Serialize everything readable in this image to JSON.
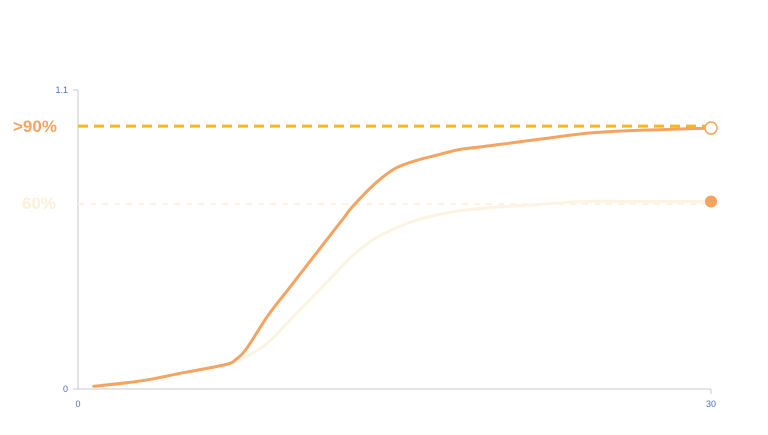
{
  "chart_data": {
    "type": "line",
    "title": "",
    "xlabel": "",
    "ylabel": "",
    "xlim": [
      0,
      30
    ],
    "ylim": [
      0,
      1.1
    ],
    "x_ticks": [
      "0",
      "30"
    ],
    "y_ticks": [
      "0",
      "1.1"
    ],
    "grid": false,
    "reference_lines": [
      {
        "label": ">90%",
        "y": 0.967,
        "style": "dashed",
        "color": "#f2b820",
        "label_color": "#f4a460"
      },
      {
        "label": "60%",
        "y": 0.68,
        "style": "dashed",
        "color": "#fbf3dc",
        "label_color": "#fbf1d6"
      }
    ],
    "series": [
      {
        "color": "#f4a460",
        "end_marker": "hollow-circle",
        "x": [
          0.75,
          3,
          5,
          7,
          7.5,
          8,
          9,
          10,
          11,
          12,
          12.6,
          13,
          14,
          15,
          16,
          17,
          18,
          19,
          20,
          21,
          22,
          24,
          26,
          28,
          30
        ],
        "y": [
          0.01,
          0.03,
          0.06,
          0.09,
          0.11,
          0.15,
          0.27,
          0.37,
          0.47,
          0.57,
          0.63,
          0.67,
          0.75,
          0.81,
          0.84,
          0.86,
          0.88,
          0.89,
          0.9,
          0.91,
          0.92,
          0.94,
          0.95,
          0.955,
          0.96
        ]
      },
      {
        "color": "#fbf4e3",
        "end_marker": "filled-circle",
        "end_marker_color": "#f4a460",
        "x": [
          0.75,
          3,
          5,
          7,
          8,
          9,
          10,
          11,
          12,
          13,
          14,
          15,
          16,
          17,
          18,
          20,
          22,
          24,
          26,
          28,
          30
        ],
        "y": [
          0.01,
          0.03,
          0.06,
          0.09,
          0.12,
          0.17,
          0.25,
          0.33,
          0.41,
          0.49,
          0.55,
          0.59,
          0.62,
          0.64,
          0.655,
          0.67,
          0.68,
          0.69,
          0.69,
          0.69,
          0.69
        ]
      }
    ]
  }
}
